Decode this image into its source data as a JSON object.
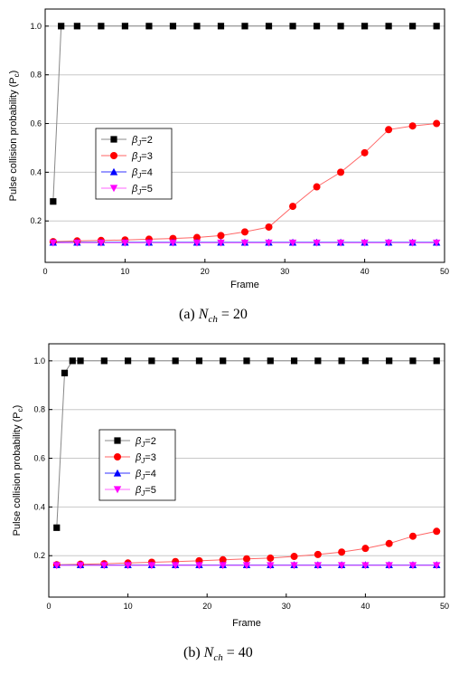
{
  "chart_data": [
    {
      "type": "line",
      "caption_label": "(a)",
      "caption_eq": "N",
      "caption_sub": "ch",
      "caption_value": "= 20",
      "xlabel": "Frame",
      "ylabel": "Pulse collision probability (P",
      "ylabel_sub": "c",
      "ylabel_close": ")",
      "xlim": [
        0,
        50
      ],
      "ylim": [
        0.03,
        1.07
      ],
      "xticks": [
        0,
        10,
        20,
        30,
        40,
        50
      ],
      "yticks": [
        0.2,
        0.4,
        0.6,
        0.8,
        1.0
      ],
      "grid": true,
      "legend_position": "center-left",
      "series": [
        {
          "name": "=2",
          "symbol": "β",
          "sub": "J",
          "marker": "square",
          "color": "#000000",
          "line_color": "#888888",
          "x": [
            1,
            2,
            4,
            7,
            10,
            13,
            16,
            19,
            22,
            25,
            28,
            31,
            34,
            37,
            40,
            43,
            46,
            49
          ],
          "y": [
            0.28,
            1.0,
            1.0,
            1.0,
            1.0,
            1.0,
            1.0,
            1.0,
            1.0,
            1.0,
            1.0,
            1.0,
            1.0,
            1.0,
            1.0,
            1.0,
            1.0,
            1.0
          ]
        },
        {
          "name": "=3",
          "symbol": "β",
          "sub": "J",
          "marker": "circle",
          "color": "#ff0000",
          "line_color": "#ff6666",
          "x": [
            1,
            4,
            7,
            10,
            13,
            16,
            19,
            22,
            25,
            28,
            31,
            34,
            37,
            40,
            43,
            46,
            49
          ],
          "y": [
            0.115,
            0.118,
            0.12,
            0.122,
            0.125,
            0.128,
            0.132,
            0.14,
            0.155,
            0.175,
            0.26,
            0.34,
            0.4,
            0.48,
            0.575,
            0.59,
            0.6
          ]
        },
        {
          "name": "=4",
          "symbol": "β",
          "sub": "J",
          "marker": "triangle-up",
          "color": "#0000ff",
          "line_color": "#3333ff",
          "x": [
            1,
            4,
            7,
            10,
            13,
            16,
            19,
            22,
            25,
            28,
            31,
            34,
            37,
            40,
            43,
            46,
            49
          ],
          "y": [
            0.112,
            0.112,
            0.112,
            0.112,
            0.112,
            0.112,
            0.112,
            0.112,
            0.112,
            0.112,
            0.112,
            0.112,
            0.112,
            0.112,
            0.112,
            0.112,
            0.112
          ]
        },
        {
          "name": "=5",
          "symbol": "β",
          "sub": "J",
          "marker": "triangle-down",
          "color": "#ff00ff",
          "line_color": "#ff66ff",
          "x": [
            1,
            4,
            7,
            10,
            13,
            16,
            19,
            22,
            25,
            28,
            31,
            34,
            37,
            40,
            43,
            46,
            49
          ],
          "y": [
            0.11,
            0.11,
            0.11,
            0.11,
            0.11,
            0.11,
            0.11,
            0.11,
            0.11,
            0.11,
            0.11,
            0.11,
            0.11,
            0.11,
            0.11,
            0.11,
            0.11
          ]
        }
      ]
    },
    {
      "type": "line",
      "caption_label": "(b)",
      "caption_eq": "N",
      "caption_sub": "ch",
      "caption_value": "= 40",
      "xlabel": "Frame",
      "ylabel": "Pulse collision probability (P",
      "ylabel_sub": "c",
      "ylabel_close": ")",
      "xlim": [
        0,
        50
      ],
      "ylim": [
        0.03,
        1.07
      ],
      "xticks": [
        0,
        10,
        20,
        30,
        40,
        50
      ],
      "yticks": [
        0.2,
        0.4,
        0.6,
        0.8,
        1.0
      ],
      "grid": true,
      "legend_position": "center-left",
      "series": [
        {
          "name": "=2",
          "symbol": "β",
          "sub": "J",
          "marker": "square",
          "color": "#000000",
          "line_color": "#888888",
          "x": [
            1,
            2,
            3,
            4,
            7,
            10,
            13,
            16,
            19,
            22,
            25,
            28,
            31,
            34,
            37,
            40,
            43,
            46,
            49
          ],
          "y": [
            0.315,
            0.95,
            1.0,
            1.0,
            1.0,
            1.0,
            1.0,
            1.0,
            1.0,
            1.0,
            1.0,
            1.0,
            1.0,
            1.0,
            1.0,
            1.0,
            1.0,
            1.0,
            1.0
          ]
        },
        {
          "name": "=3",
          "symbol": "β",
          "sub": "J",
          "marker": "circle",
          "color": "#ff0000",
          "line_color": "#ff6666",
          "x": [
            1,
            4,
            7,
            10,
            13,
            16,
            19,
            22,
            25,
            28,
            31,
            34,
            37,
            40,
            43,
            46,
            49
          ],
          "y": [
            0.163,
            0.165,
            0.167,
            0.17,
            0.173,
            0.176,
            0.179,
            0.183,
            0.187,
            0.19,
            0.197,
            0.205,
            0.215,
            0.23,
            0.25,
            0.28,
            0.3
          ]
        },
        {
          "name": "=4",
          "symbol": "β",
          "sub": "J",
          "marker": "triangle-up",
          "color": "#0000ff",
          "line_color": "#3333ff",
          "x": [
            1,
            4,
            7,
            10,
            13,
            16,
            19,
            22,
            25,
            28,
            31,
            34,
            37,
            40,
            43,
            46,
            49
          ],
          "y": [
            0.162,
            0.162,
            0.162,
            0.162,
            0.162,
            0.162,
            0.162,
            0.162,
            0.162,
            0.162,
            0.162,
            0.162,
            0.162,
            0.162,
            0.162,
            0.162,
            0.162
          ]
        },
        {
          "name": "=5",
          "symbol": "β",
          "sub": "J",
          "marker": "triangle-down",
          "color": "#ff00ff",
          "line_color": "#ff66ff",
          "x": [
            1,
            4,
            7,
            10,
            13,
            16,
            19,
            22,
            25,
            28,
            31,
            34,
            37,
            40,
            43,
            46,
            49
          ],
          "y": [
            0.16,
            0.16,
            0.16,
            0.16,
            0.16,
            0.16,
            0.16,
            0.16,
            0.16,
            0.16,
            0.16,
            0.16,
            0.16,
            0.16,
            0.16,
            0.16,
            0.16
          ]
        }
      ]
    }
  ]
}
